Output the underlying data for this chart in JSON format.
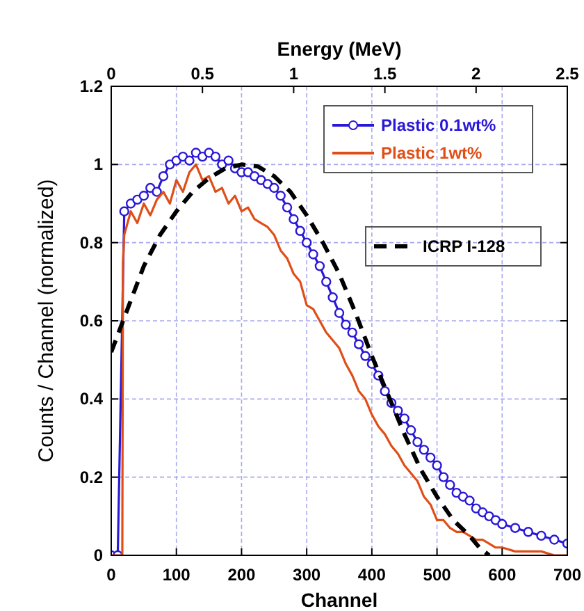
{
  "chart_data": {
    "type": "line",
    "xlabel": "Channel",
    "ylabel": "Counts / Channel (normalized)",
    "x2label": "Energy (MeV)",
    "xlim": [
      0,
      700
    ],
    "xticks": [
      0,
      100,
      200,
      300,
      400,
      500,
      600,
      700
    ],
    "ylim": [
      0,
      1.2
    ],
    "yticks": [
      0,
      0.2,
      0.4,
      0.6,
      0.8,
      1,
      1.2
    ],
    "x2lim": [
      0,
      2.5
    ],
    "x2ticks": [
      0,
      0.5,
      1,
      1.5,
      2,
      2.5
    ],
    "grid": true,
    "legend": "top right",
    "series": [
      {
        "name": "Plastic 0.1wt%",
        "color": "#2a18d8",
        "marker": "circle",
        "line_style": "solid",
        "x": [
          0,
          10,
          20,
          30,
          40,
          50,
          60,
          70,
          80,
          90,
          100,
          110,
          120,
          130,
          140,
          150,
          160,
          170,
          180,
          190,
          200,
          210,
          220,
          230,
          240,
          250,
          260,
          270,
          280,
          290,
          300,
          310,
          320,
          330,
          340,
          350,
          360,
          370,
          380,
          390,
          400,
          410,
          420,
          430,
          440,
          450,
          460,
          470,
          480,
          490,
          500,
          510,
          520,
          530,
          540,
          550,
          560,
          570,
          580,
          590,
          600,
          620,
          640,
          660,
          680,
          700
        ],
        "values": [
          0,
          0,
          0.88,
          0.9,
          0.91,
          0.92,
          0.94,
          0.93,
          0.97,
          1.0,
          1.01,
          1.02,
          1.01,
          1.03,
          1.02,
          1.03,
          1.02,
          1.0,
          1.01,
          0.99,
          0.98,
          0.98,
          0.97,
          0.96,
          0.95,
          0.94,
          0.92,
          0.89,
          0.86,
          0.83,
          0.8,
          0.77,
          0.74,
          0.7,
          0.66,
          0.62,
          0.59,
          0.57,
          0.54,
          0.51,
          0.49,
          0.46,
          0.42,
          0.39,
          0.37,
          0.35,
          0.32,
          0.29,
          0.27,
          0.25,
          0.23,
          0.2,
          0.18,
          0.16,
          0.15,
          0.14,
          0.12,
          0.11,
          0.1,
          0.09,
          0.08,
          0.07,
          0.06,
          0.05,
          0.04,
          0.03
        ]
      },
      {
        "name": "Plastic 1wt%",
        "color": "#e04e18",
        "marker": "none",
        "line_style": "solid",
        "x": [
          0,
          17,
          18,
          20,
          30,
          40,
          50,
          60,
          70,
          80,
          90,
          100,
          110,
          120,
          130,
          140,
          150,
          160,
          170,
          180,
          190,
          200,
          210,
          220,
          230,
          240,
          250,
          260,
          270,
          280,
          290,
          300,
          310,
          320,
          330,
          340,
          350,
          360,
          370,
          380,
          390,
          400,
          410,
          420,
          430,
          440,
          450,
          460,
          470,
          480,
          490,
          500,
          510,
          520,
          530,
          540,
          550,
          560,
          570,
          580,
          590,
          600,
          620,
          640,
          660,
          680,
          700
        ],
        "values": [
          0,
          0,
          0.75,
          0.82,
          0.88,
          0.85,
          0.9,
          0.87,
          0.91,
          0.93,
          0.9,
          0.96,
          0.93,
          0.98,
          1.0,
          0.96,
          0.97,
          0.93,
          0.94,
          0.9,
          0.92,
          0.88,
          0.89,
          0.86,
          0.85,
          0.84,
          0.82,
          0.78,
          0.76,
          0.72,
          0.7,
          0.64,
          0.63,
          0.6,
          0.57,
          0.55,
          0.53,
          0.49,
          0.46,
          0.42,
          0.4,
          0.36,
          0.33,
          0.31,
          0.28,
          0.26,
          0.23,
          0.21,
          0.19,
          0.15,
          0.13,
          0.09,
          0.09,
          0.07,
          0.06,
          0.06,
          0.05,
          0.04,
          0.04,
          0.03,
          0.02,
          0.02,
          0.01,
          0.01,
          0.01,
          0.0,
          0.0
        ]
      },
      {
        "name": "ICRP I-128",
        "color": "#000000",
        "marker": "none",
        "line_style": "dashed",
        "x": [
          0,
          25,
          50,
          75,
          100,
          125,
          150,
          175,
          200,
          225,
          250,
          275,
          300,
          325,
          350,
          375,
          400,
          425,
          450,
          475,
          500,
          525,
          550,
          565,
          580
        ],
        "values": [
          0.52,
          0.63,
          0.74,
          0.82,
          0.88,
          0.93,
          0.965,
          0.99,
          1.0,
          0.995,
          0.97,
          0.93,
          0.87,
          0.8,
          0.72,
          0.62,
          0.51,
          0.41,
          0.31,
          0.22,
          0.15,
          0.09,
          0.05,
          0.02,
          0.0
        ]
      }
    ]
  }
}
